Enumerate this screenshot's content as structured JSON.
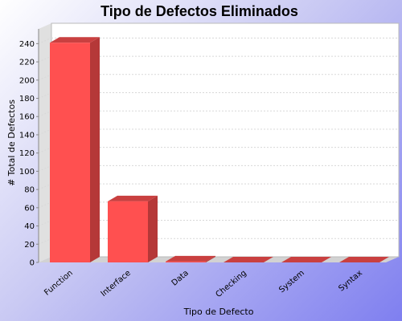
{
  "chart_data": {
    "type": "bar",
    "title": "Tipo de Defectos Eliminados",
    "xlabel": "Tipo de Defecto",
    "ylabel": "# Total de Defectos",
    "categories": [
      "Function",
      "Interface",
      "Data",
      "Checking",
      "System",
      "Syntax"
    ],
    "values": [
      241,
      67,
      1,
      0,
      0,
      0
    ],
    "ylim": [
      0,
      250
    ],
    "yticks": [
      0,
      20,
      40,
      60,
      80,
      100,
      120,
      140,
      160,
      180,
      200,
      220,
      240
    ],
    "grid": true,
    "legend": "none",
    "bar_color": "#ff5050",
    "plot_background": "#ffffff"
  }
}
